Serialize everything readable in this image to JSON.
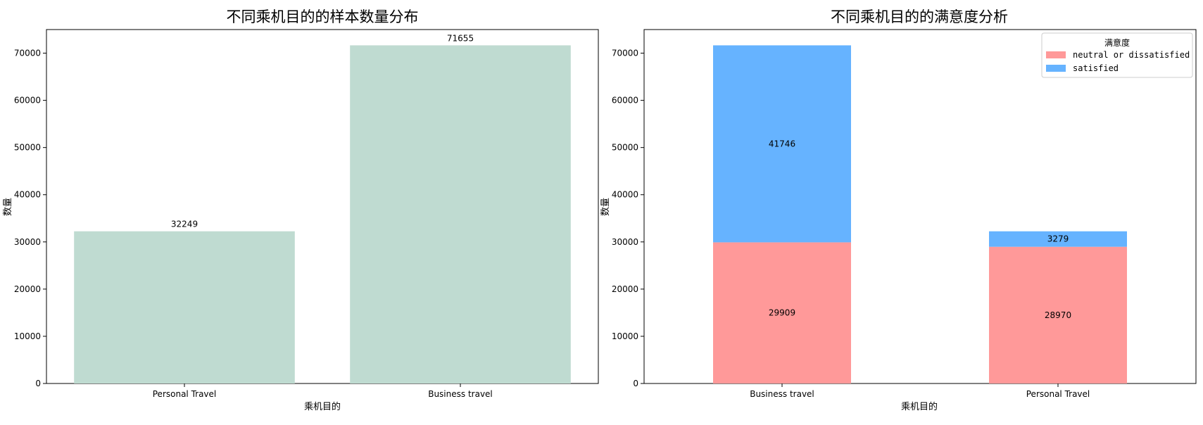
{
  "chart_data": [
    {
      "type": "bar",
      "title": "不同乘机目的的样本数量分布",
      "xlabel": "乘机目的",
      "ylabel": "数量",
      "categories": [
        "Personal Travel",
        "Business travel"
      ],
      "values": [
        32249,
        71655
      ],
      "ylim": [
        0,
        75000
      ],
      "yticks": [
        0,
        10000,
        20000,
        30000,
        40000,
        50000,
        60000,
        70000
      ],
      "grid": false,
      "colors": {
        "bar": "#bfdbd1"
      }
    },
    {
      "type": "bar",
      "stacked": true,
      "title": "不同乘机目的的满意度分析",
      "xlabel": "乘机目的",
      "ylabel": "数量",
      "categories": [
        "Business travel",
        "Personal Travel"
      ],
      "series": [
        {
          "name": "neutral or dissatisfied",
          "values": [
            29909,
            28970
          ],
          "color": "#ff9999"
        },
        {
          "name": "satisfied",
          "values": [
            41746,
            3279
          ],
          "color": "#66b3ff"
        }
      ],
      "ylim": [
        0,
        75000
      ],
      "yticks": [
        0,
        10000,
        20000,
        30000,
        40000,
        50000,
        60000,
        70000
      ],
      "grid": false,
      "legend": {
        "title": "满意度",
        "placement": "top-right"
      }
    }
  ]
}
